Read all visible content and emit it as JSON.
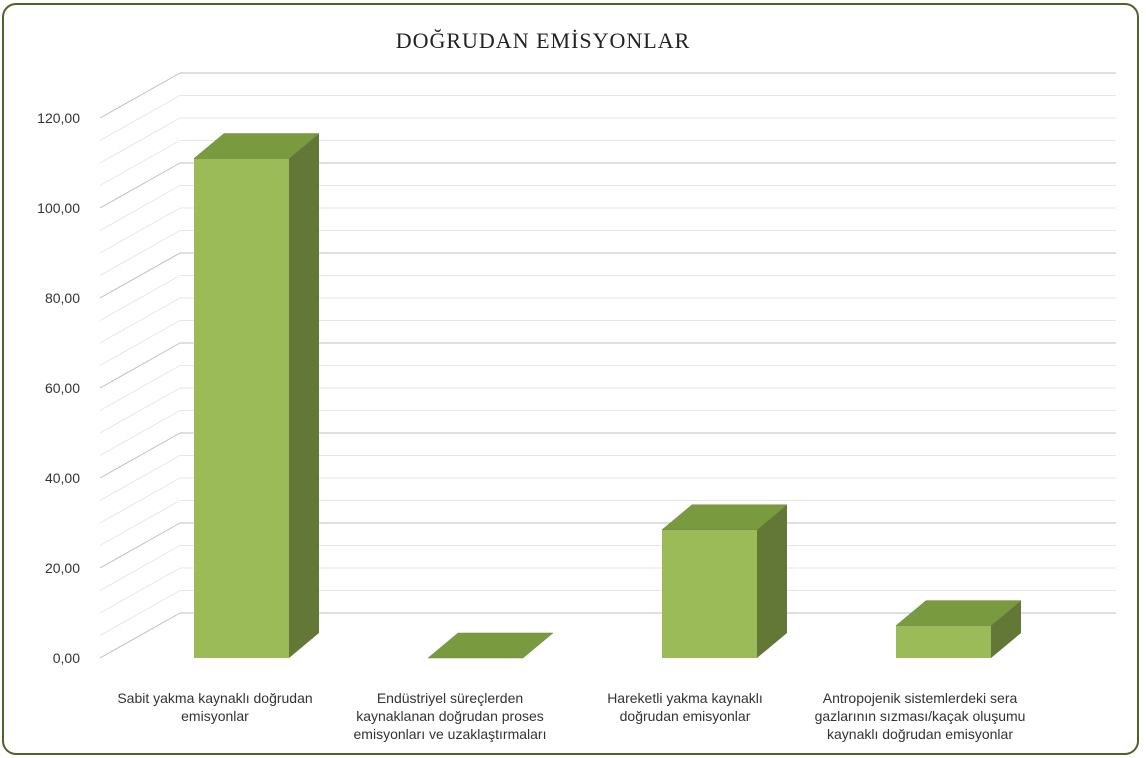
{
  "chart_data": {
    "type": "bar",
    "title": "DOĞRUDAN EMİSYONLAR",
    "categories": [
      [
        "Sabit yakma kaynaklı doğrudan",
        "emisyonlar"
      ],
      [
        "Endüstriyel süreçlerden",
        "kaynaklanan doğrudan proses",
        "emisyonları ve uzaklaştırmaları"
      ],
      [
        "Hareketli yakma kaynaklı",
        "doğrudan emisyonlar"
      ],
      [
        "Antropojenik sistemlerdeki sera",
        "gazlarının sızması/kaçak oluşumu",
        "kaynaklı doğrudan emisyonlar"
      ]
    ],
    "values": [
      111,
      0,
      28.5,
      7.2
    ],
    "yticks": [
      "0,00",
      "20,00",
      "40,00",
      "60,00",
      "80,00",
      "100,00",
      "120,00"
    ],
    "ylim": [
      0,
      120
    ],
    "grid": true,
    "colors": {
      "front": "#9bbb59",
      "top": "#7a9a40",
      "side": "#637836",
      "grid": "#d9d9d9",
      "frame": "#4f6228"
    }
  }
}
